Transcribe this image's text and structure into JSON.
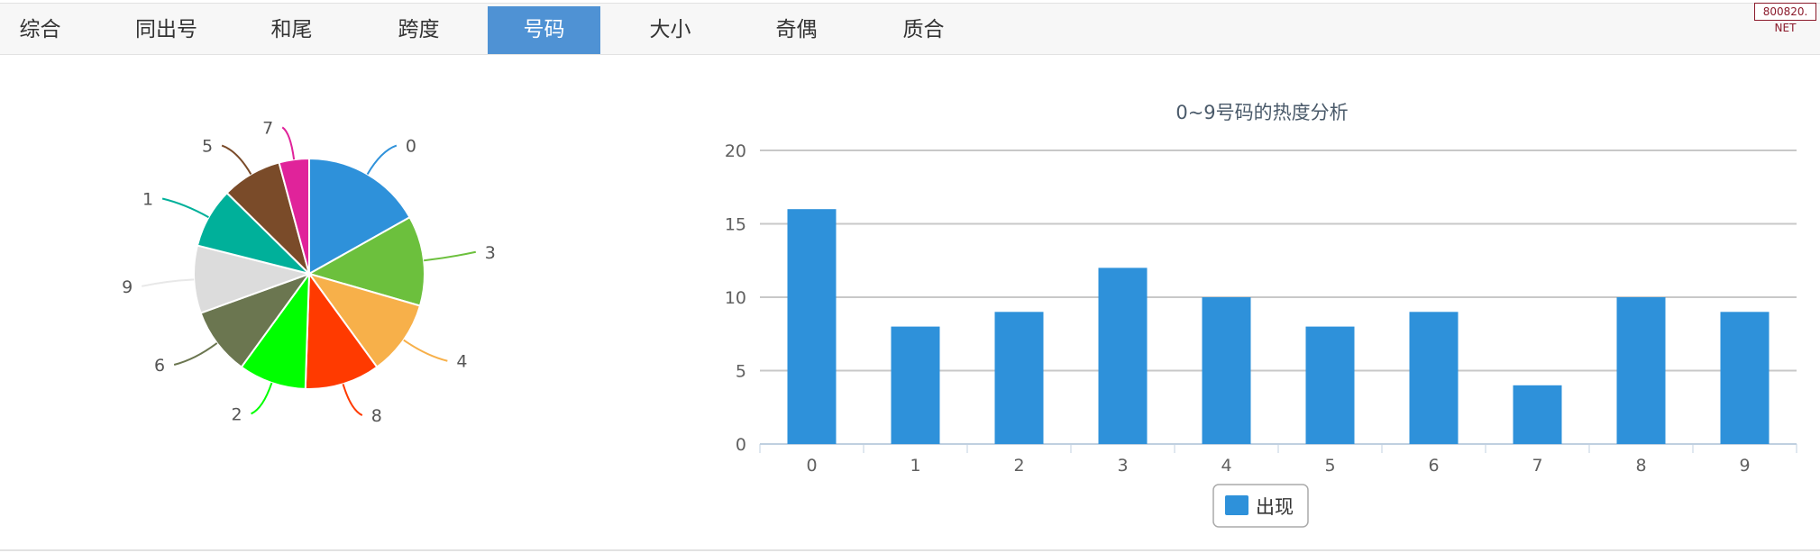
{
  "tabs": [
    {
      "label": "综合",
      "active": false
    },
    {
      "label": "同出号",
      "active": false
    },
    {
      "label": "和尾",
      "active": false
    },
    {
      "label": "跨度",
      "active": false
    },
    {
      "label": "号码",
      "active": true
    },
    {
      "label": "大小",
      "active": false
    },
    {
      "label": "奇偶",
      "active": false
    },
    {
      "label": "质合",
      "active": false
    }
  ],
  "watermark": "800820. NET",
  "chart_data": [
    {
      "type": "pie",
      "slices": [
        {
          "label": "0",
          "value": 16,
          "color": "#2e91da"
        },
        {
          "label": "3",
          "value": 12,
          "color": "#6cc03d"
        },
        {
          "label": "4",
          "value": 10,
          "color": "#f7b04a"
        },
        {
          "label": "8",
          "value": 10,
          "color": "#ff3a00"
        },
        {
          "label": "2",
          "value": 9,
          "color": "#00ff00"
        },
        {
          "label": "6",
          "value": 9,
          "color": "#6b7650"
        },
        {
          "label": "9",
          "value": 9,
          "color": "#dcdcdc"
        },
        {
          "label": "1",
          "value": 8,
          "color": "#00b09a"
        },
        {
          "label": "5",
          "value": 8,
          "color": "#7a4b29"
        },
        {
          "label": "7",
          "value": 4,
          "color": "#e0239a"
        }
      ]
    },
    {
      "type": "bar",
      "title": "0~9号码的热度分析",
      "categories": [
        "0",
        "1",
        "2",
        "3",
        "4",
        "5",
        "6",
        "7",
        "8",
        "9"
      ],
      "series": [
        {
          "name": "出现",
          "values": [
            16,
            8,
            9,
            12,
            10,
            8,
            9,
            4,
            10,
            9
          ],
          "color": "#2e91da"
        }
      ],
      "ylim": [
        0,
        20
      ],
      "yticks": [
        "0",
        "5",
        "10",
        "15",
        "20"
      ],
      "grid": true,
      "legend": "bottom-center"
    }
  ]
}
